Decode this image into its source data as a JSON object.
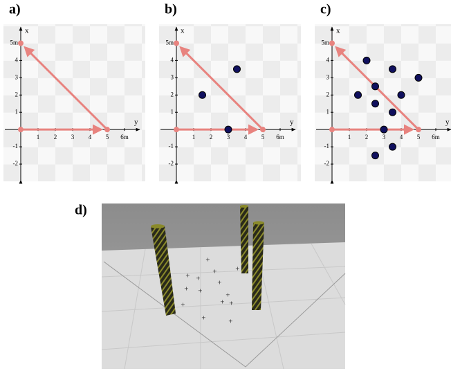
{
  "chart_data": [
    {
      "type": "scatter",
      "title": "a)",
      "xlabel": "y",
      "ylabel": "x",
      "xlim": [
        -1,
        7.2
      ],
      "ylim": [
        -3,
        6.1
      ],
      "xticks": [
        1,
        2,
        3,
        4,
        5,
        {
          "value": 6,
          "label": "6m"
        }
      ],
      "yticks": [
        -2,
        -1,
        1,
        2,
        3,
        4,
        {
          "value": 5,
          "label": "5m"
        }
      ],
      "series": [
        {
          "color": "#e8837f",
          "x": [
            0,
            5,
            0
          ],
          "values": [
            0,
            0,
            5
          ]
        }
      ]
    },
    {
      "type": "scatter",
      "title": "b)",
      "xlabel": "y",
      "ylabel": "x",
      "xlim": [
        -1,
        7.2
      ],
      "ylim": [
        -3,
        6.1
      ],
      "xticks": [
        1,
        2,
        3,
        4,
        5,
        {
          "value": 6,
          "label": "6m"
        }
      ],
      "yticks": [
        -2,
        -1,
        1,
        2,
        3,
        4,
        {
          "value": 5,
          "label": "5m"
        }
      ],
      "series": [
        {
          "color": "#e8837f",
          "x": [
            0,
            5,
            0
          ],
          "values": [
            0,
            0,
            5
          ]
        },
        {
          "color": "#10105e",
          "x": [
            1.5,
            3,
            3.5
          ],
          "values": [
            2,
            0,
            3.5
          ]
        }
      ]
    },
    {
      "type": "scatter",
      "title": "c)",
      "xlabel": "y",
      "ylabel": "x",
      "xlim": [
        -1,
        7.2
      ],
      "ylim": [
        -3,
        6.1
      ],
      "xticks": [
        1,
        2,
        3,
        4,
        5,
        {
          "value": 6,
          "label": "6m"
        }
      ],
      "yticks": [
        -2,
        -1,
        1,
        2,
        3,
        4,
        {
          "value": 5,
          "label": "5m"
        }
      ],
      "series": [
        {
          "color": "#e8837f",
          "x": [
            0,
            5,
            0
          ],
          "values": [
            0,
            0,
            5
          ]
        },
        {
          "color": "#10105e",
          "x": [
            2,
            3.5,
            2.5,
            1.5,
            4,
            5,
            2.5,
            3.5,
            3,
            3.5,
            2.5
          ],
          "values": [
            4,
            3.5,
            2.5,
            2,
            2,
            3,
            1.5,
            1,
            0,
            -1,
            -1.5
          ]
        }
      ]
    }
  ],
  "panel_d": {
    "label": "d)"
  }
}
